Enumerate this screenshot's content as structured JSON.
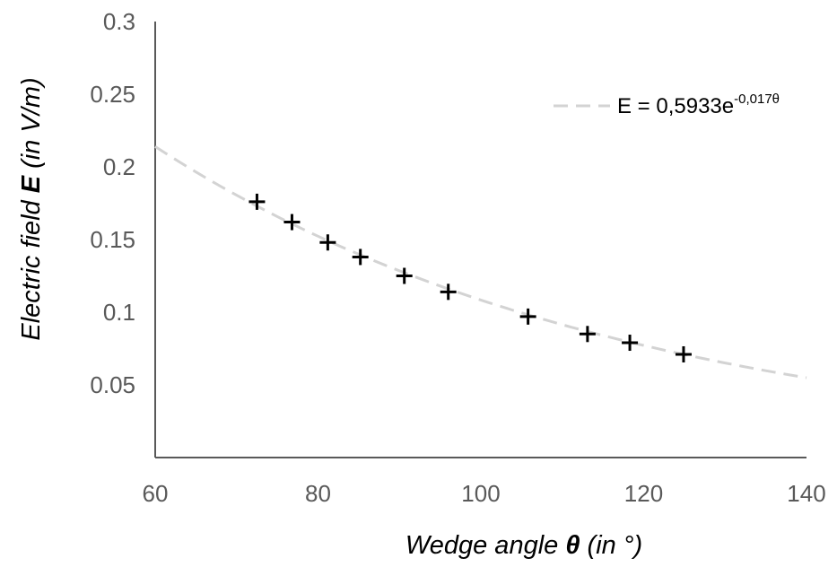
{
  "chart_data": {
    "type": "scatter",
    "title": "",
    "xlabel_parts": [
      "Wedge angle ",
      "θ",
      " (in °)"
    ],
    "ylabel_parts": [
      "Electric field ",
      "E",
      " (in V/m)"
    ],
    "xlim": [
      60,
      140
    ],
    "ylim": [
      0,
      0.3
    ],
    "x_ticks": [
      "60",
      "80",
      "100",
      "120",
      "140"
    ],
    "y_ticks": [
      "0.05",
      "0.1",
      "0.15",
      "0.2",
      "0.25",
      "0.3"
    ],
    "grid": false,
    "legend_position": "top-right",
    "series": [
      {
        "marker": "plus",
        "color": "#000000",
        "points": [
          {
            "x": 72.5,
            "y": 0.176
          },
          {
            "x": 76.8,
            "y": 0.162
          },
          {
            "x": 81.2,
            "y": 0.148
          },
          {
            "x": 85.2,
            "y": 0.138
          },
          {
            "x": 90.6,
            "y": 0.125
          },
          {
            "x": 96.0,
            "y": 0.114
          },
          {
            "x": 105.8,
            "y": 0.097
          },
          {
            "x": 113.1,
            "y": 0.085
          },
          {
            "x": 118.3,
            "y": 0.079
          },
          {
            "x": 124.9,
            "y": 0.071
          }
        ]
      }
    ],
    "trendline": {
      "type": "exponential",
      "a": 0.5933,
      "b": -0.017,
      "color": "#d3d3d3",
      "dash": "dashed",
      "label_base": "E = 0,5933e",
      "label_exp": "-0,017θ",
      "x_range": [
        60,
        140
      ]
    }
  }
}
